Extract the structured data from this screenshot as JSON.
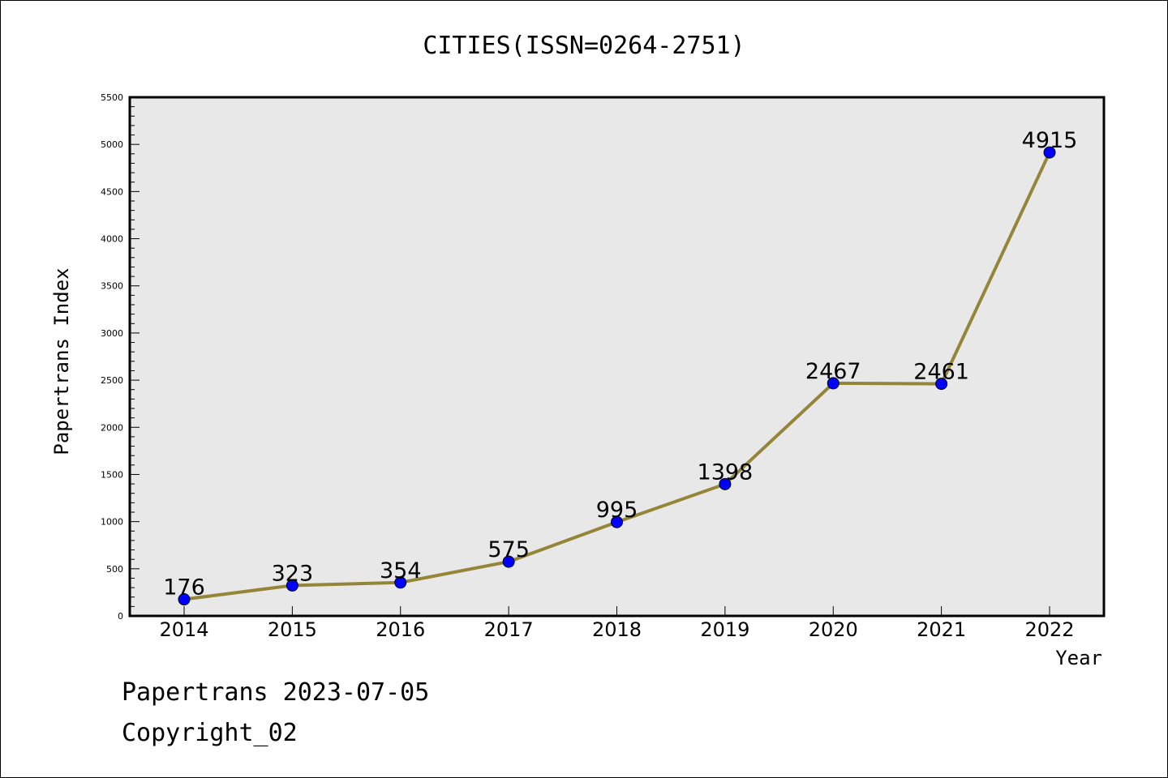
{
  "chart_data": {
    "type": "line",
    "title": "CITIES(ISSN=0264-2751)",
    "xlabel": "Year",
    "ylabel": "Papertrans Index",
    "categories": [
      "2014",
      "2015",
      "2016",
      "2017",
      "2018",
      "2019",
      "2020",
      "2021",
      "2022"
    ],
    "series": [
      {
        "values": [
          176,
          323,
          354,
          575,
          995,
          1398,
          2467,
          2461,
          4915
        ],
        "labels": [
          "176",
          "323",
          "354",
          "575",
          "995",
          "1398",
          "2467",
          "2461",
          "4915"
        ]
      }
    ],
    "ylim": [
      0,
      5500
    ],
    "yticks": [
      "0",
      "500",
      "1000",
      "1500",
      "2000",
      "2500",
      "3000",
      "3500",
      "4000",
      "4500",
      "5000",
      "5500"
    ],
    "grid": false,
    "line_color": "#948538",
    "marker_color": "#0000ff",
    "plot_background": "#e8e8e8"
  },
  "footer": {
    "line1": "Papertrans 2023-07-05",
    "line2": "Copyright_02"
  }
}
